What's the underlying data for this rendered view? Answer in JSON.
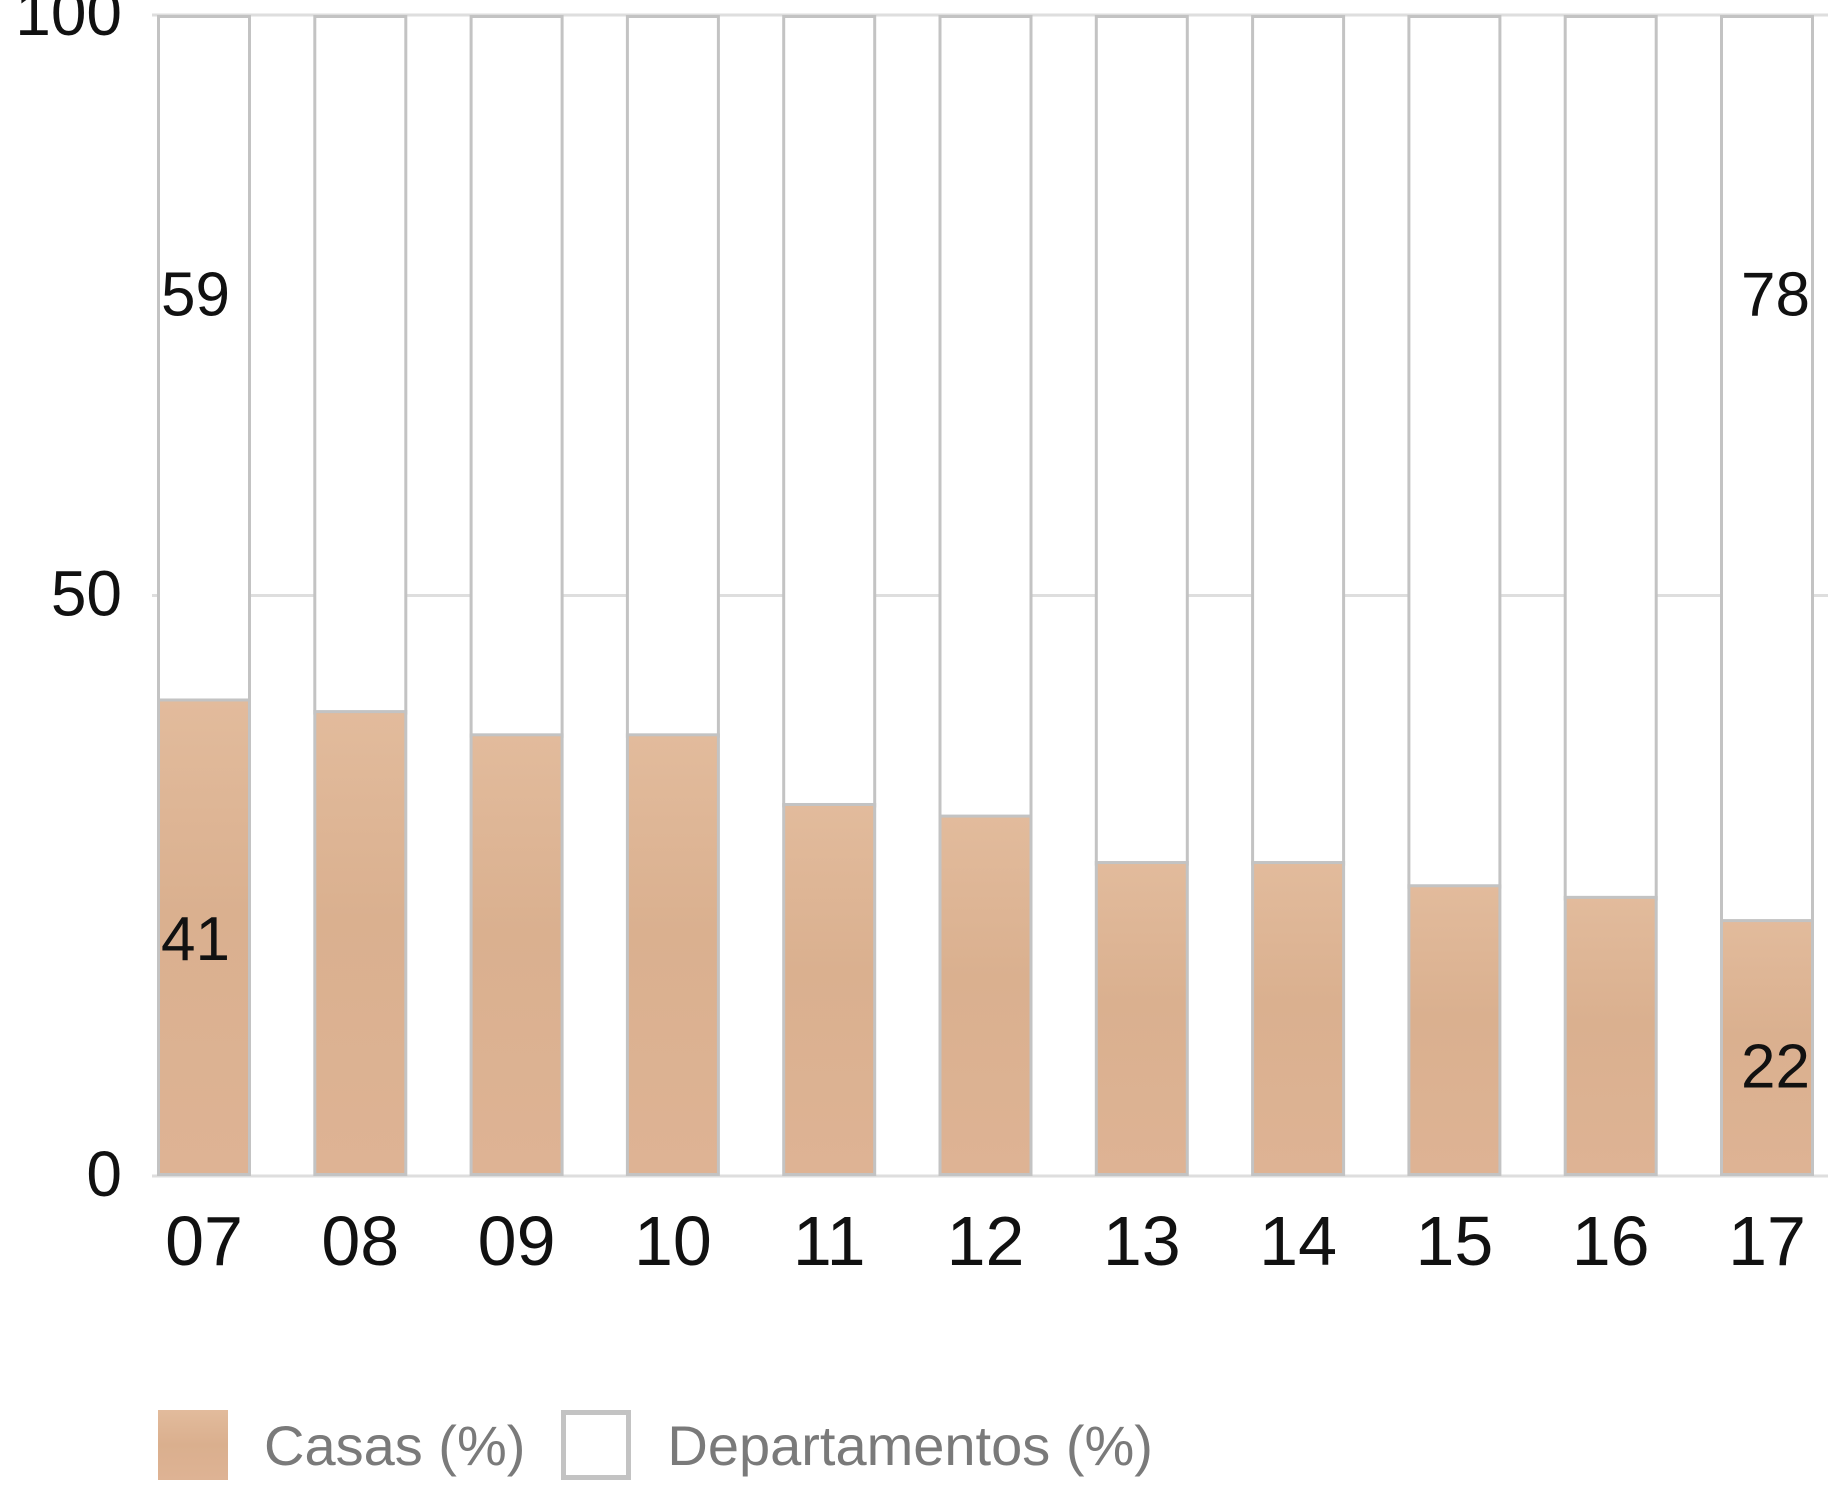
{
  "chart_data": {
    "type": "bar",
    "stacked": true,
    "categories": [
      "07",
      "08",
      "09",
      "10",
      "11",
      "12",
      "13",
      "14",
      "15",
      "16",
      "17"
    ],
    "series": [
      {
        "name": "Casas (%)",
        "values": [
          41,
          40,
          38,
          38,
          32,
          31,
          27,
          27,
          25,
          24,
          22
        ],
        "color": "#deb394"
      },
      {
        "name": "Departamentos (%)",
        "values": [
          59,
          60,
          62,
          62,
          68,
          69,
          73,
          73,
          75,
          76,
          78
        ],
        "color": "#ffffff",
        "border_color": "#c3c3c3"
      }
    ],
    "ylim": [
      0,
      100
    ],
    "yticks": [
      "0",
      "50",
      "100"
    ],
    "grid": true,
    "data_labels": [
      {
        "category": "07",
        "series": "Departamentos (%)",
        "text": "59"
      },
      {
        "category": "07",
        "series": "Casas (%)",
        "text": "41"
      },
      {
        "category": "17",
        "series": "Departamentos (%)",
        "text": "78"
      },
      {
        "category": "17",
        "series": "Casas (%)",
        "text": "22"
      }
    ],
    "legend_position": "bottom-left"
  },
  "legend": {
    "casas": "Casas (%)",
    "departamentos": "Departamentos (%)"
  }
}
